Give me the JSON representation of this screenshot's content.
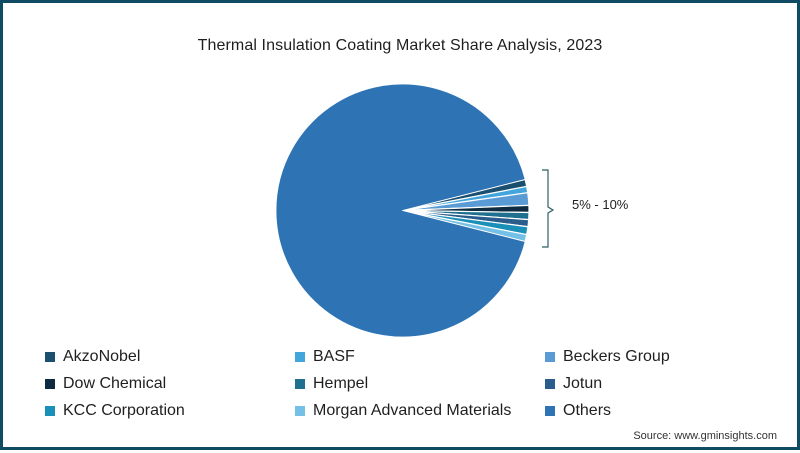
{
  "title": "Thermal Insulation Coating Market Share Analysis, 2023",
  "range_label": "5% - 10%",
  "source": "Source: www.gminsights.com",
  "colors": {
    "frame_border": "#0f4c63",
    "bracket": "#2f5f66"
  },
  "legend": [
    {
      "label": "AkzoNobel",
      "color": "#1b4f6f"
    },
    {
      "label": "BASF",
      "color": "#42a5dc"
    },
    {
      "label": "Beckers Group",
      "color": "#5b9bd5"
    },
    {
      "label": "Dow Chemical",
      "color": "#0e2b40"
    },
    {
      "label": "Hempel",
      "color": "#1f6f8f"
    },
    {
      "label": "Jotun",
      "color": "#2a5d8c"
    },
    {
      "label": "KCC Corporation",
      "color": "#1a8fb8"
    },
    {
      "label": "Morgan Advanced Materials",
      "color": "#74c0e6"
    },
    {
      "label": "Others",
      "color": "#2e74b5"
    }
  ],
  "chart_data": {
    "type": "pie",
    "title": "Thermal Insulation Coating Market Share Analysis, 2023",
    "categories": [
      "AkzoNobel",
      "BASF",
      "Beckers Group",
      "Dow Chemical",
      "Hempel",
      "Jotun",
      "KCC Corporation",
      "Morgan Advanced Materials",
      "Others"
    ],
    "values": [
      0.9,
      0.8,
      1.6,
      0.9,
      0.9,
      0.9,
      1.0,
      0.9,
      92.1
    ],
    "unit": "%",
    "annotations": [
      {
        "text": "5% - 10%",
        "applies_to": [
          "AkzoNobel",
          "BASF",
          "Beckers Group",
          "Dow Chemical",
          "Hempel",
          "Jotun",
          "KCC Corporation",
          "Morgan Advanced Materials"
        ]
      }
    ],
    "legend_position": "bottom",
    "source": "Source: www.gminsights.com"
  }
}
